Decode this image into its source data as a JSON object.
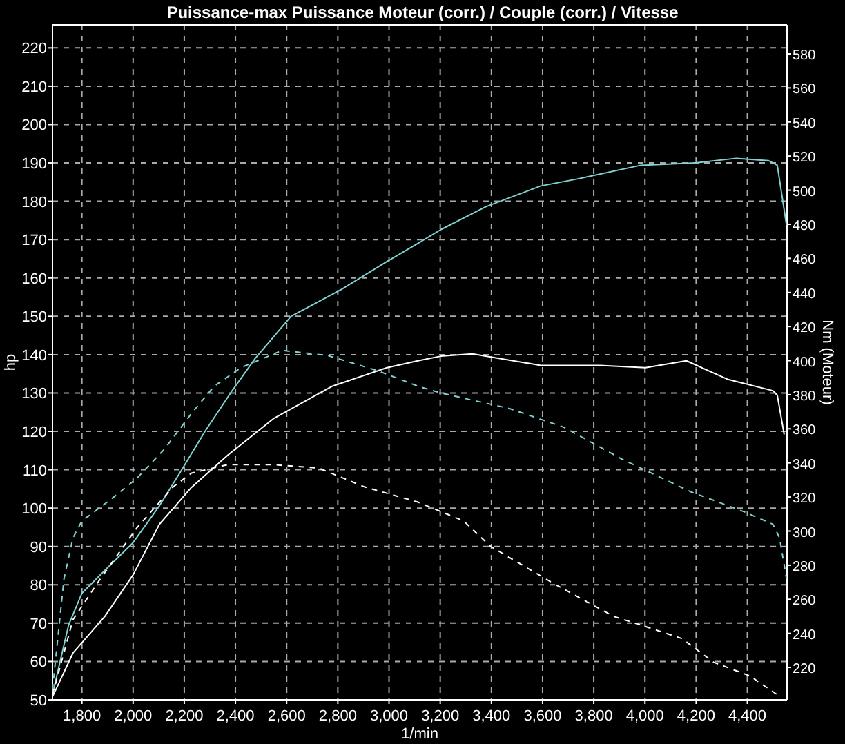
{
  "chart_data": {
    "type": "line",
    "title": "Puissance-max Puissance Moteur (corr.) / Couple (corr.) / Vitesse",
    "xlabel": "1/min",
    "ylabel": "hp",
    "y2label": "Nm (Moteur)",
    "xlim": [
      1685,
      4555
    ],
    "xticks": [
      {
        "value": 1800,
        "label": "1,800"
      },
      {
        "value": 2000,
        "label": "2,000"
      },
      {
        "value": 2200,
        "label": "2,200"
      },
      {
        "value": 2400,
        "label": "2,400"
      },
      {
        "value": 2600,
        "label": "2,600"
      },
      {
        "value": 2800,
        "label": "2,800"
      },
      {
        "value": 3000,
        "label": "3,000"
      },
      {
        "value": 3200,
        "label": "3,200"
      },
      {
        "value": 3400,
        "label": "3,400"
      },
      {
        "value": 3600,
        "label": "3,600"
      },
      {
        "value": 3800,
        "label": "3,800"
      },
      {
        "value": 4000,
        "label": "4,000"
      },
      {
        "value": 4200,
        "label": "4,200"
      },
      {
        "value": 4400,
        "label": "4,400"
      }
    ],
    "ylim": [
      50,
      226
    ],
    "yticks": [
      50,
      60,
      70,
      80,
      90,
      100,
      110,
      120,
      130,
      140,
      150,
      160,
      170,
      180,
      190,
      200,
      210,
      220
    ],
    "y2lim": [
      201,
      597
    ],
    "y2ticks": [
      220,
      240,
      260,
      280,
      300,
      320,
      340,
      360,
      380,
      400,
      420,
      440,
      460,
      480,
      500,
      520,
      540,
      560,
      580
    ],
    "grid": true,
    "series": [
      {
        "color": "#7fd3d3",
        "line_style": "solid",
        "x": [
          1685,
          1748,
          1800,
          1890,
          2000,
          2103,
          2192,
          2281,
          2388,
          2477,
          2617,
          2814,
          2992,
          3113,
          3202,
          3379,
          3593,
          3735,
          3984,
          4197,
          4357,
          4482,
          4517,
          4553
        ],
        "values": [
          51.4,
          69.5,
          77.8,
          83.8,
          91,
          100.6,
          110.2,
          120,
          130.7,
          139,
          150,
          157,
          164.3,
          169,
          172.6,
          178.6,
          184,
          185.8,
          189.4,
          190,
          191.2,
          190.6,
          189.4,
          173.8
        ]
      },
      {
        "color": "#ffffff",
        "line_style": "solid",
        "x": [
          1685,
          1765,
          1890,
          2000,
          2103,
          2228,
          2370,
          2548,
          2779,
          2992,
          3113,
          3202,
          3326,
          3593,
          3824,
          4002,
          4162,
          4322,
          4500,
          4517,
          4544
        ],
        "values": [
          50.8,
          62.2,
          71.8,
          82.6,
          95.8,
          105.4,
          113.8,
          123.3,
          131.8,
          136.6,
          138.4,
          139.6,
          140.2,
          137.2,
          137.2,
          136.6,
          138.4,
          133.6,
          130.6,
          129.4,
          119.2
        ]
      },
      {
        "color": "#7fd3d3",
        "line_style": "dashed",
        "axis": "y2",
        "x": [
          1685,
          1730,
          1765,
          1800,
          1908,
          2015,
          2122,
          2228,
          2317,
          2423,
          2583,
          2761,
          2957,
          3113,
          3202,
          3469,
          3682,
          3913,
          4180,
          4393,
          4500,
          4526,
          4553
        ],
        "values": [
          207,
          272,
          296,
          306,
          318,
          331,
          348,
          369,
          385,
          396,
          406,
          403,
          394,
          385,
          381,
          372,
          361,
          342,
          323,
          311,
          304,
          296,
          272
        ]
      },
      {
        "color": "#ffffff",
        "line_style": "dashed",
        "axis": "y2",
        "x": [
          1685,
          1765,
          1872,
          2015,
          2157,
          2228,
          2370,
          2548,
          2725,
          2903,
          3113,
          3291,
          3397,
          3646,
          3877,
          4002,
          4144,
          4269,
          4410,
          4517
        ],
        "values": [
          204,
          248,
          272,
          302,
          326,
          334,
          339,
          339,
          337,
          326,
          317,
          306,
          291,
          269,
          250,
          244,
          237,
          223,
          215,
          204
        ]
      }
    ]
  }
}
